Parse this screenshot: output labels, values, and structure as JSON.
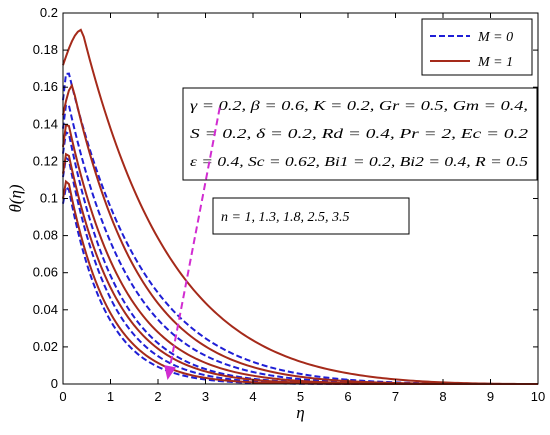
{
  "chart_data": {
    "type": "line",
    "xlabel": "η",
    "ylabel": "θ(η)",
    "xlim": [
      0,
      10
    ],
    "ylim": [
      0,
      0.2
    ],
    "x_ticks": [
      "0",
      "1",
      "2",
      "3",
      "4",
      "5",
      "6",
      "7",
      "8",
      "9",
      "10"
    ],
    "y_ticks": [
      "0",
      "0.02",
      "0.04",
      "0.06",
      "0.08",
      "0.1",
      "0.12",
      "0.14",
      "0.16",
      "0.18",
      "0.2"
    ],
    "grid": false,
    "legend": {
      "placement": "top-right",
      "entries": [
        {
          "label": "M = 0",
          "color": "#1f1fd6",
          "dash": true
        },
        {
          "label": "M = 1",
          "color": "#a52a1a",
          "dash": false
        }
      ]
    },
    "parameters": [
      "γ = 0.2, β = 0.6, K = 0.2, Gr = 0.5, Gm = 0.4,",
      "S = 0.2, δ = 0.2, Rd = 0.4, Pr = 2, Ec = 0.2",
      "ε = 0.4, Sc = 0.62, Bi1 = 0.2, Bi2 = 0.4, R = 0.5"
    ],
    "annotation": {
      "text": "n = 1, 1.3, 1.8, 2.5, 3.5",
      "arrow_from": [
        3.3,
        0.08
      ],
      "arrow_to": [
        2.2,
        0.0
      ]
    },
    "series": [
      {
        "group": "M = 0",
        "n": 1,
        "peak": 0.17,
        "peak_x": 0.1,
        "decay": 2.15,
        "end": 9.6
      },
      {
        "group": "M = 0",
        "n": 1.3,
        "peak": 0.153,
        "peak_x": 0.1,
        "decay": 1.7,
        "end": 9.4
      },
      {
        "group": "M = 0",
        "n": 1.8,
        "peak": 0.138,
        "peak_x": 0.1,
        "decay": 1.3,
        "end": 9.2
      },
      {
        "group": "M = 0",
        "n": 2.5,
        "peak": 0.124,
        "peak_x": 0.1,
        "decay": 1.1,
        "end": 9.0
      },
      {
        "group": "M = 0",
        "n": 3.5,
        "peak": 0.108,
        "peak_x": 0.1,
        "decay": 0.92,
        "end": 8.8
      },
      {
        "group": "M = 1",
        "n": 1,
        "peak": 0.191,
        "peak_x": 0.4,
        "decay": 2.7,
        "end": 9.9
      },
      {
        "group": "M = 1",
        "n": 1.3,
        "peak": 0.161,
        "peak_x": 0.2,
        "decay": 1.85,
        "end": 9.7
      },
      {
        "group": "M = 1",
        "n": 1.8,
        "peak": 0.142,
        "peak_x": 0.1,
        "decay": 1.5,
        "end": 9.5
      },
      {
        "group": "M = 1",
        "n": 2.5,
        "peak": 0.126,
        "peak_x": 0.1,
        "decay": 1.25,
        "end": 9.3
      },
      {
        "group": "M = 1",
        "n": 3.5,
        "peak": 0.111,
        "peak_x": 0.1,
        "decay": 1.0,
        "end": 9.1
      }
    ]
  }
}
